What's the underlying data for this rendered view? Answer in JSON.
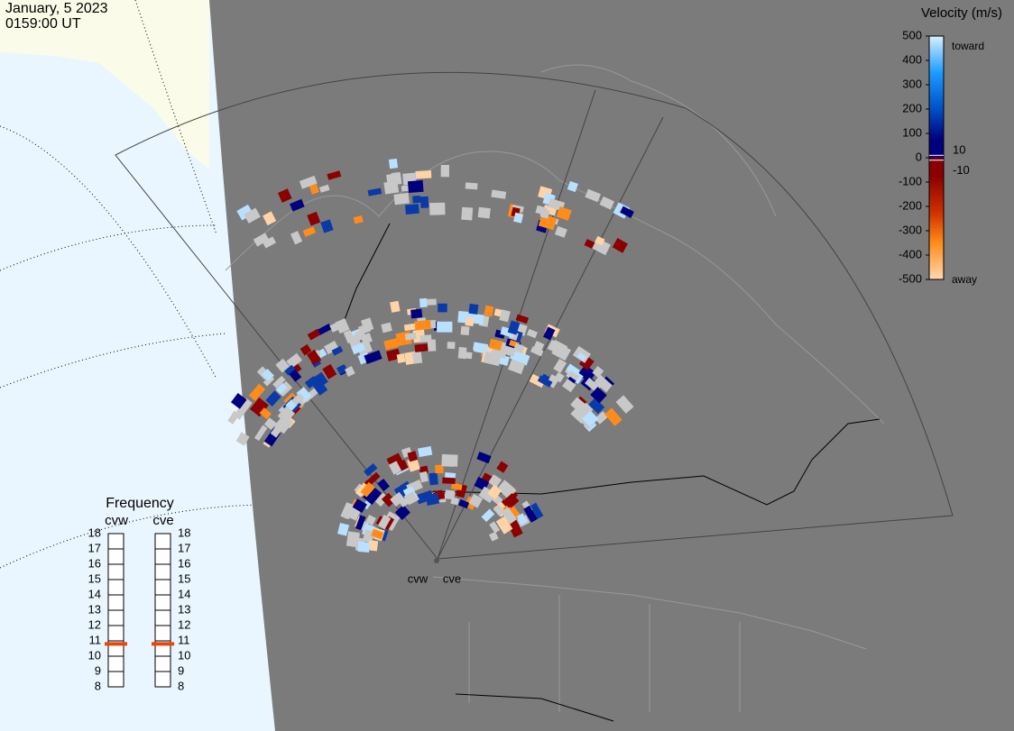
{
  "header": {
    "date": "January, 5 2023",
    "time": "0159:00 UT"
  },
  "velocity_scale": {
    "title": "Velocity (m/s)",
    "ticks": [
      500,
      400,
      300,
      200,
      100,
      0,
      -100,
      -200,
      -300,
      -400,
      -500
    ],
    "inner_ticks": [
      10,
      -10
    ],
    "toward": "toward",
    "away": "away"
  },
  "frequency": {
    "title": "Frequency",
    "ticks": [
      8,
      9,
      10,
      11,
      12,
      13,
      14,
      15,
      16,
      17,
      18
    ],
    "radars": [
      {
        "name": "cvw",
        "value": 10.8
      },
      {
        "name": "cve",
        "value": 10.8
      }
    ]
  },
  "radar_sites": [
    "cvw",
    "cve"
  ]
}
